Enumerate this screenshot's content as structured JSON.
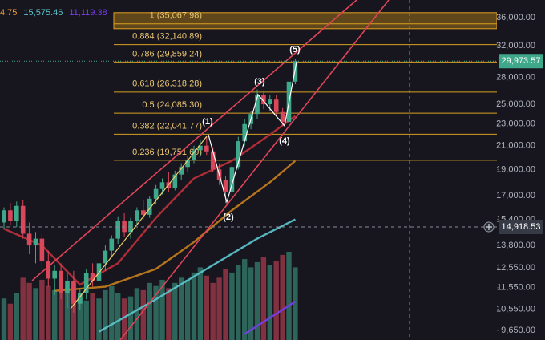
{
  "chart_data": {
    "type": "candlestick",
    "legend_values": [
      {
        "text": "4.75",
        "color": "#f0a030"
      },
      {
        "text": "15,575.46",
        "color": "#5cc8d0"
      },
      {
        "text": "11,119.38",
        "color": "#7a3cf0"
      }
    ],
    "log_scale": true,
    "ylim": [
      9268,
      38780
    ],
    "yticks": [
      {
        "value": 36000,
        "label": "36,000.00"
      },
      {
        "value": 32000,
        "label": "32,000.00"
      },
      {
        "value": 28000,
        "label": "28,000.00"
      },
      {
        "value": 25000,
        "label": "25,000.00"
      },
      {
        "value": 23000,
        "label": "23,000.00"
      },
      {
        "value": 21000,
        "label": "21,000.00"
      },
      {
        "value": 19000,
        "label": "19,000.00"
      },
      {
        "value": 17000,
        "label": "17,000.00"
      },
      {
        "value": 15400,
        "label": "15,400.00"
      },
      {
        "value": 13800,
        "label": "13,800.00"
      },
      {
        "value": 12550,
        "label": "12,550.00"
      },
      {
        "value": 11550,
        "label": "11,550.00"
      },
      {
        "value": 10550,
        "label": "10,550.00"
      },
      {
        "value": 9650,
        "label": "9,650.00"
      }
    ],
    "up_color": "#3fa88a",
    "down_color": "#d9485a",
    "open": [
      15200,
      16000,
      15300,
      16300,
      14500,
      13800,
      14200,
      12900,
      12000,
      12400,
      11300,
      11900,
      10800,
      11300,
      12300,
      11900,
      12800,
      13500,
      14200,
      15300,
      14600,
      15300,
      16000,
      15700,
      16800,
      17500,
      18000,
      17600,
      18600,
      19200,
      19800,
      20600,
      21000,
      20500,
      19000,
      18200,
      17300,
      19200,
      21400,
      23000,
      24000,
      26000,
      25000,
      25500,
      24200,
      23200,
      27500
    ],
    "high": [
      16200,
      16500,
      16600,
      16700,
      15200,
      14600,
      14500,
      13500,
      12700,
      12800,
      12300,
      12400,
      11500,
      12500,
      12800,
      13000,
      13800,
      14400,
      15600,
      15800,
      15500,
      16200,
      16700,
      17000,
      17800,
      18300,
      18800,
      18900,
      19500,
      20100,
      21000,
      21500,
      21800,
      20900,
      19500,
      18500,
      19500,
      21800,
      23500,
      24300,
      26600,
      26500,
      26000,
      26000,
      24600,
      28000,
      30200
    ],
    "low": [
      14800,
      15000,
      14900,
      14200,
      13300,
      12800,
      12500,
      11600,
      11200,
      11000,
      10600,
      10400,
      10500,
      11000,
      11600,
      11700,
      12400,
      13100,
      13900,
      14300,
      14200,
      15000,
      15400,
      15500,
      16400,
      17100,
      17300,
      17400,
      18200,
      18800,
      19500,
      20100,
      20200,
      18800,
      17800,
      16500,
      17000,
      19000,
      21000,
      22500,
      23500,
      24500,
      24300,
      23800,
      22800,
      23000,
      27200
    ],
    "close": [
      16000,
      15300,
      16300,
      14500,
      13800,
      14200,
      12900,
      12000,
      12400,
      11300,
      11900,
      10800,
      11300,
      12300,
      11900,
      12800,
      13500,
      14200,
      15300,
      14600,
      15300,
      16000,
      15700,
      16800,
      17500,
      18000,
      17600,
      18600,
      19200,
      19800,
      20600,
      21000,
      20500,
      19000,
      18200,
      17300,
      19200,
      21400,
      23000,
      24000,
      26000,
      25000,
      25500,
      24200,
      23200,
      27500,
      29973.57
    ],
    "volume": [
      40,
      35,
      45,
      60,
      55,
      50,
      58,
      52,
      48,
      45,
      50,
      55,
      42,
      38,
      45,
      40,
      48,
      52,
      45,
      40,
      42,
      50,
      48,
      55,
      52,
      58,
      50,
      55,
      60,
      58,
      65,
      70,
      62,
      55,
      60,
      68,
      65,
      72,
      78,
      70,
      75,
      80,
      72,
      76,
      82,
      85,
      70
    ],
    "moving_averages": [
      {
        "color": "#c0303a",
        "x": [
          0,
          6,
          12,
          18,
          24,
          30,
          36,
          42,
          46
        ],
        "values": [
          14800,
          13800,
          11700,
          12800,
          15500,
          18300,
          19700,
          22000,
          23800
        ]
      },
      {
        "color": "#c8801c",
        "x": [
          8,
          16,
          24,
          30,
          36,
          42,
          46
        ],
        "values": [
          11400,
          11600,
          12500,
          14000,
          16000,
          18000,
          19700
        ]
      },
      {
        "color": "#5cc8d0",
        "x": [
          15,
          24,
          32,
          40,
          46
        ],
        "values": [
          9600,
          11000,
          12500,
          14200,
          15400
        ]
      },
      {
        "color": "#7a3cf0",
        "x": [
          38,
          46
        ],
        "values": [
          9500,
          10900
        ]
      }
    ],
    "fib_levels": [
      {
        "value": 35067.98,
        "label": "1 (35,067.98)"
      },
      {
        "value": 32140.89,
        "label": "0.884 (32,140.89)"
      },
      {
        "value": 29859.24,
        "label": "0.786 (29,859.24)"
      },
      {
        "value": 26318.28,
        "label": "0.618 (26,318.28)"
      },
      {
        "value": 24085.3,
        "label": "0.5 (24,085.30)"
      },
      {
        "value": 22041.77,
        "label": "0.382 (22,041.77)"
      },
      {
        "value": 19751.69,
        "label": "0.236 (19,751.69)"
      }
    ],
    "waves": [
      "(1)",
      "(2)",
      "(3)",
      "(4)",
      "(5)"
    ],
    "last_price": {
      "value": 29973.57,
      "label": "29,973.57"
    },
    "crosshair": {
      "value": 14918.53,
      "label": "14,918.53"
    }
  }
}
